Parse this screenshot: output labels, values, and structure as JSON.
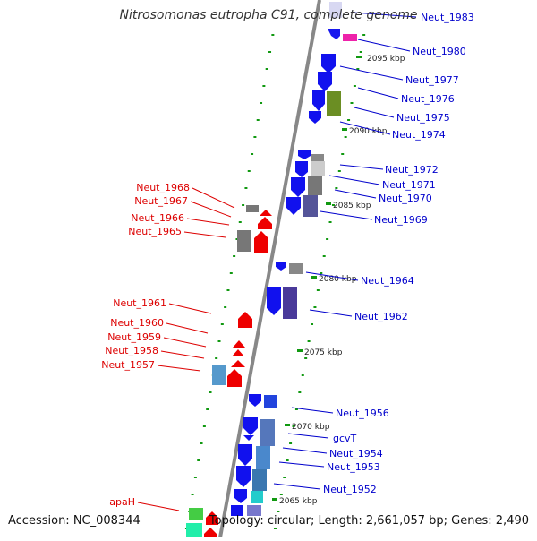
{
  "title": "Nitrosomonas eutropha C91, complete genome",
  "footer": {
    "accession": "Accession: NC_008344",
    "summary": "Topology: circular; Length: 2,661,057 bp; Genes: 2,490"
  },
  "colors": {
    "forward_label": "#0000cc",
    "reverse_label": "#dd0000",
    "ruler_tick": "#119911",
    "backbone": "#888888"
  },
  "ruler_ticks": [
    {
      "label": "2095 kbp",
      "y": 2095
    },
    {
      "label": "2090 kbp",
      "y": 2090
    },
    {
      "label": "2085 kbp",
      "y": 2085
    },
    {
      "label": "2080 kbp",
      "y": 2080
    },
    {
      "label": "2075 kbp",
      "y": 2075
    },
    {
      "label": "2070 kbp",
      "y": 2070
    },
    {
      "label": "2065 kbp",
      "y": 2065
    }
  ],
  "forward_genes": [
    {
      "name": "Neut_1983"
    },
    {
      "name": "Neut_1980"
    },
    {
      "name": "Neut_1977"
    },
    {
      "name": "Neut_1976"
    },
    {
      "name": "Neut_1975"
    },
    {
      "name": "Neut_1974"
    },
    {
      "name": "Neut_1972"
    },
    {
      "name": "Neut_1971"
    },
    {
      "name": "Neut_1970"
    },
    {
      "name": "Neut_1969"
    },
    {
      "name": "Neut_1964"
    },
    {
      "name": "Neut_1962"
    },
    {
      "name": "Neut_1956"
    },
    {
      "name": "gcvT"
    },
    {
      "name": "Neut_1954"
    },
    {
      "name": "Neut_1953"
    },
    {
      "name": "Neut_1952"
    }
  ],
  "reverse_genes": [
    {
      "name": "Neut_1968"
    },
    {
      "name": "Neut_1967"
    },
    {
      "name": "Neut_1966"
    },
    {
      "name": "Neut_1965"
    },
    {
      "name": "Neut_1961"
    },
    {
      "name": "Neut_1960"
    },
    {
      "name": "Neut_1959"
    },
    {
      "name": "Neut_1958"
    },
    {
      "name": "Neut_1957"
    },
    {
      "name": "apaH"
    }
  ]
}
